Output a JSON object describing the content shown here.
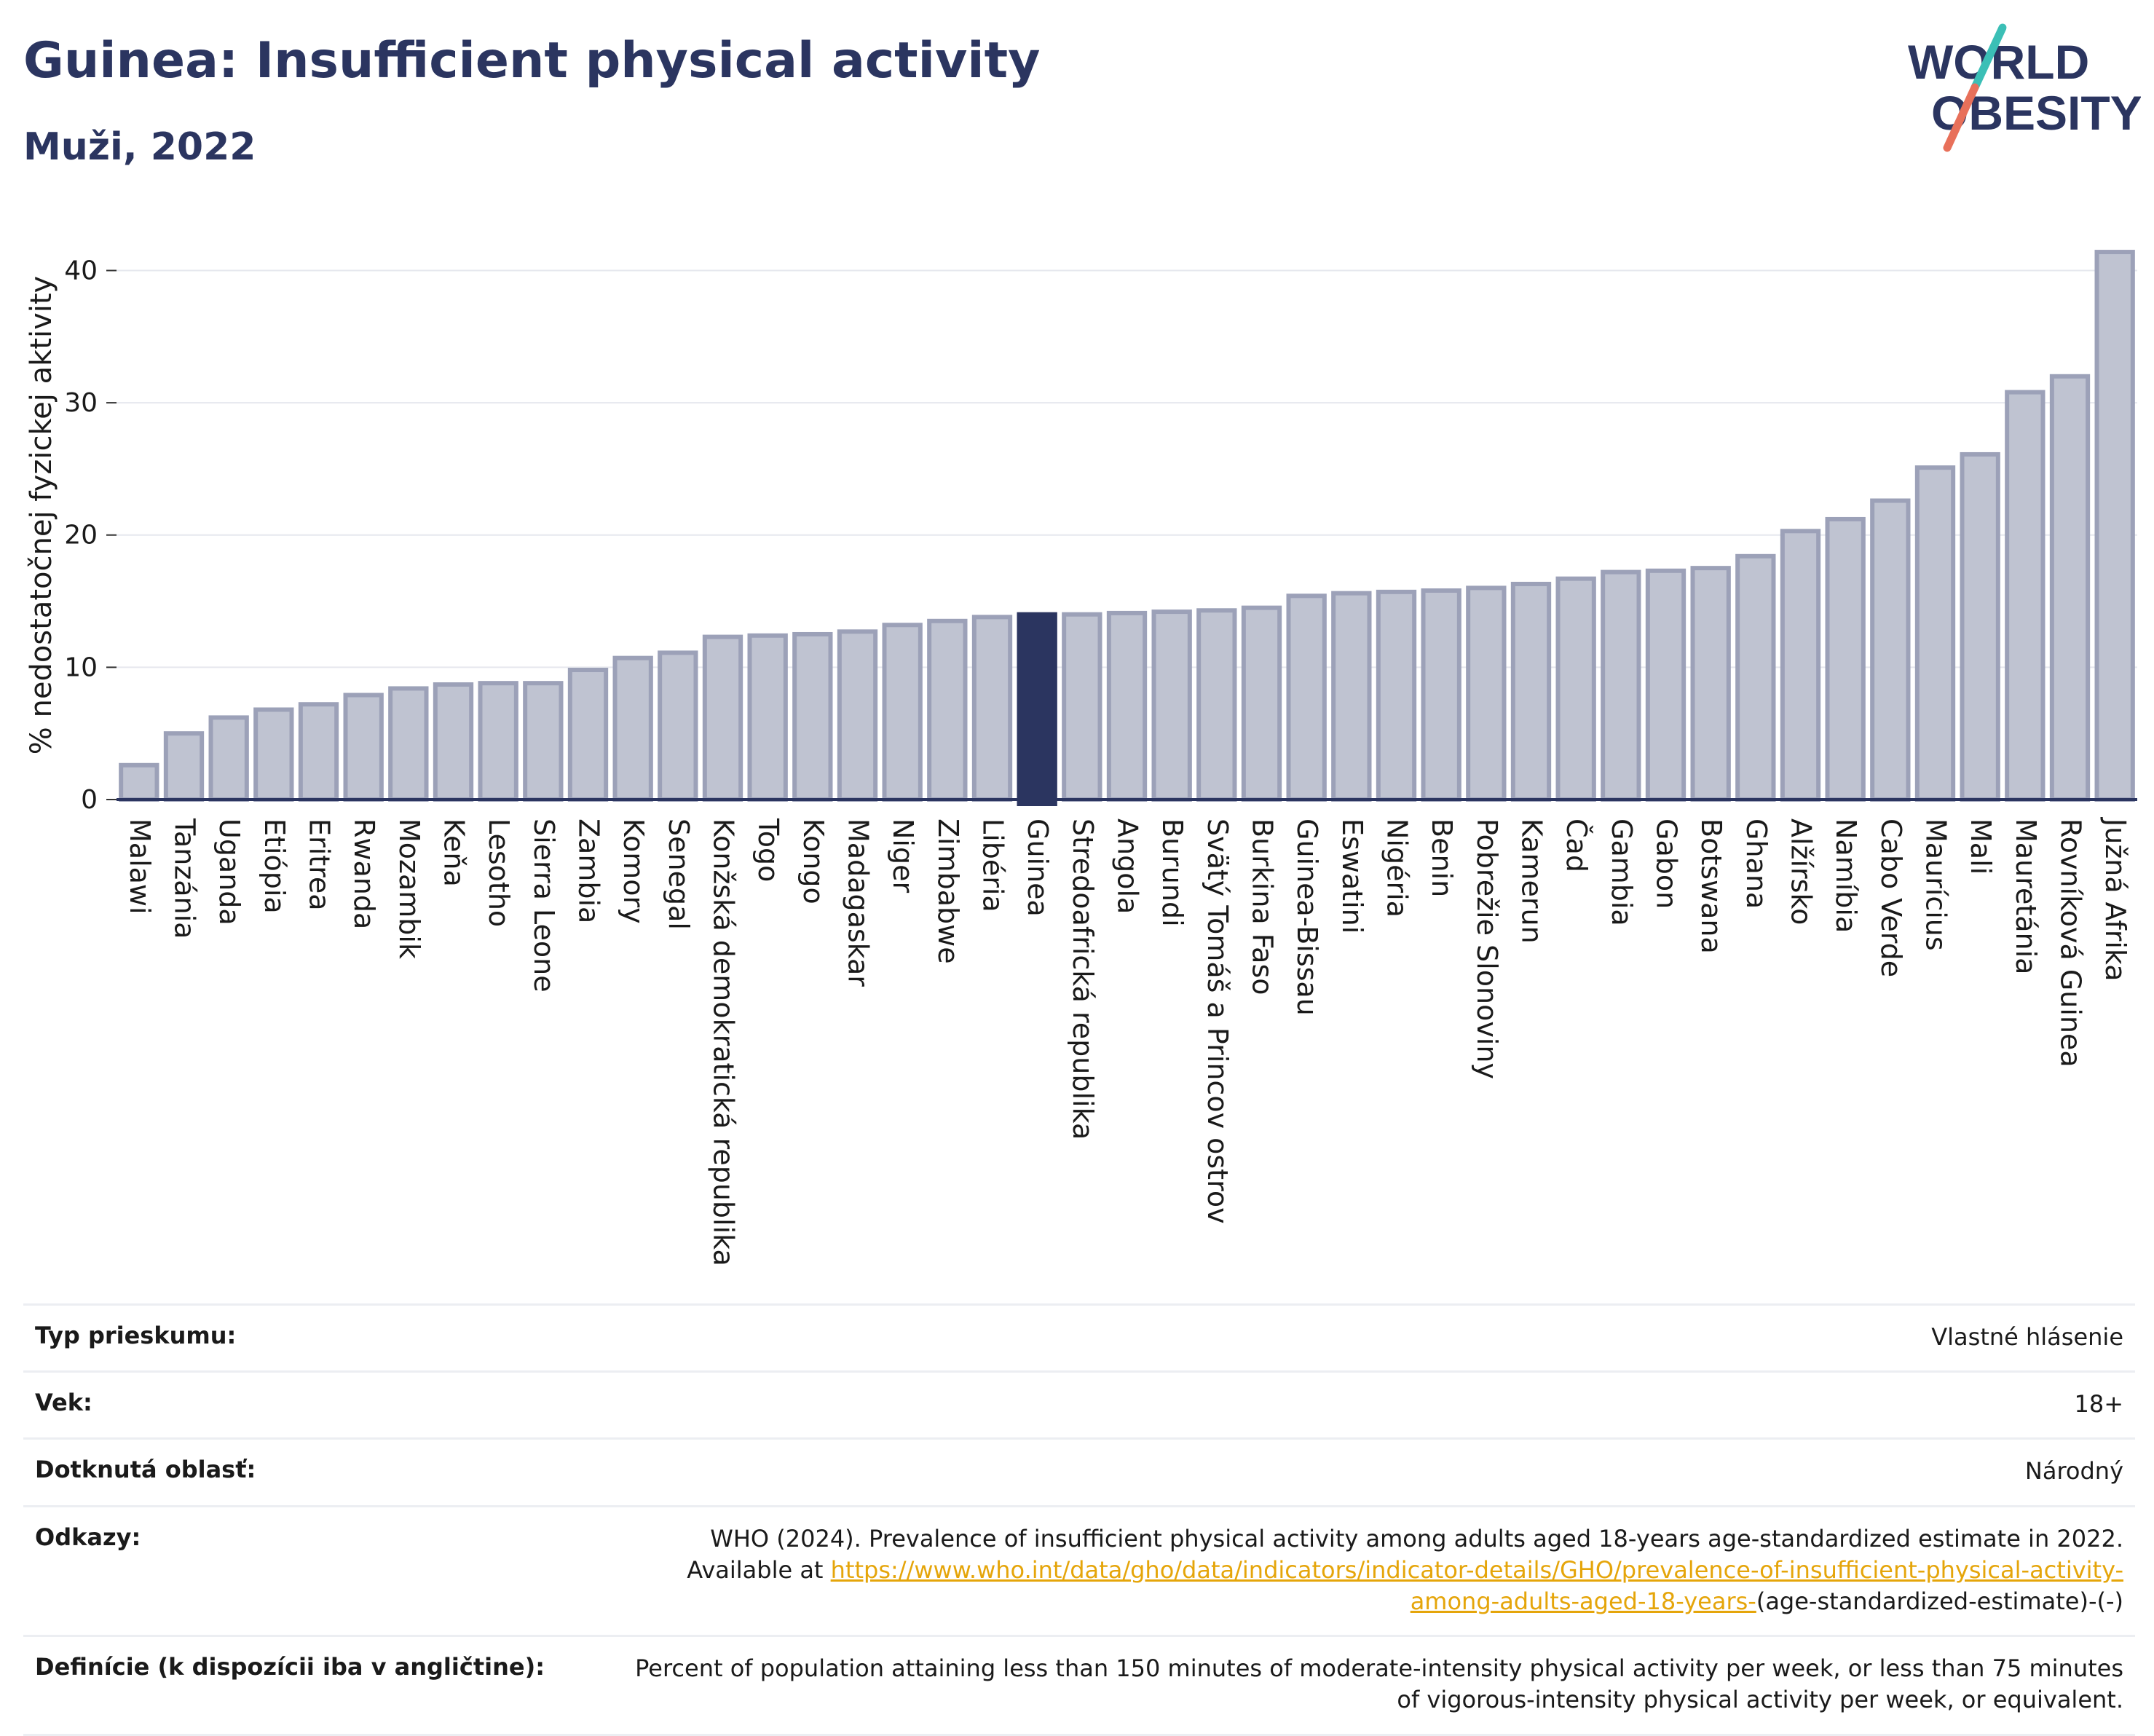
{
  "header": {
    "title": "Guinea: Insufficient physical activity",
    "subtitle": "Muži, 2022",
    "logo_line1": "WORLD",
    "logo_line2": "OBESITY"
  },
  "colors": {
    "bar": "#bfc3d1",
    "bar_edge": "#9ca1b8",
    "highlight": "#2b3560",
    "grid": "#e6e8ee",
    "axis": "#2b3560",
    "logo_teal": "#3bbfb6",
    "logo_coral": "#e8705a",
    "link": "#e5a50a"
  },
  "chart_data": {
    "type": "bar",
    "ylabel": "% nedostatočnej fyzickej aktivity",
    "ylim": [
      0,
      43
    ],
    "yticks": [
      0,
      10,
      20,
      30,
      40
    ],
    "grid": true,
    "highlight": "Guinea",
    "categories": [
      "Malawi",
      "Tanzánia",
      "Uganda",
      "Etiópia",
      "Eritrea",
      "Rwanda",
      "Mozambik",
      "Keňa",
      "Lesotho",
      "Sierra Leone",
      "Zambia",
      "Komory",
      "Senegal",
      "Konžská demokratická republika",
      "Togo",
      "Kongo",
      "Madagaskar",
      "Niger",
      "Zimbabwe",
      "Libéria",
      "Guinea",
      "Stredoafrická republika",
      "Angola",
      "Burundi",
      "Svätý Tomáš a Princov ostrov",
      "Burkina Faso",
      "Guinea-Bissau",
      "Eswatini",
      "Nigéria",
      "Benin",
      "Pobrežie Slonoviny",
      "Kamerun",
      "Čad",
      "Gambia",
      "Gabon",
      "Botswana",
      "Ghana",
      "Alžírsko",
      "Namíbia",
      "Cabo Verde",
      "Maurícius",
      "Mali",
      "Mauretánia",
      "Rovníková Guinea",
      "Južná Afrika"
    ],
    "values": [
      2.6,
      5.0,
      6.2,
      6.8,
      7.2,
      7.9,
      8.4,
      8.7,
      8.8,
      8.8,
      9.8,
      10.7,
      11.1,
      12.3,
      12.4,
      12.5,
      12.7,
      13.2,
      13.5,
      13.8,
      14.0,
      14.0,
      14.1,
      14.2,
      14.3,
      14.5,
      15.4,
      15.6,
      15.7,
      15.8,
      16.0,
      16.3,
      16.7,
      17.2,
      17.3,
      17.5,
      18.4,
      20.3,
      21.2,
      22.6,
      25.1,
      26.1,
      30.8,
      32.0,
      41.4
    ]
  },
  "info": [
    {
      "label": "Typ prieskumu:",
      "value": "Vlastné hlásenie"
    },
    {
      "label": "Vek:",
      "value": "18+"
    },
    {
      "label": "Dotknutá oblasť:",
      "value": "Národný"
    },
    {
      "label": "Odkazy:",
      "value": "WHO (2024). Prevalence of insufficient physical activity among adults aged 18-years age-standardized estimate in 2022. Available at",
      "link": "https://www.who.int/data/gho/data/indicators/indicator-details/GHO/prevalence-of-insufficient-physical-activity-among-adults-aged-18-years-",
      "suffix": "(age-standardized-estimate)-(-)"
    },
    {
      "label": "Definície (k dispozícii iba v angličtine):",
      "value": "Percent of population attaining less than 150 minutes of moderate-intensity physical activity per week, or less than 75 minutes of vigorous-intensity physical activity per week, or equivalent."
    }
  ]
}
